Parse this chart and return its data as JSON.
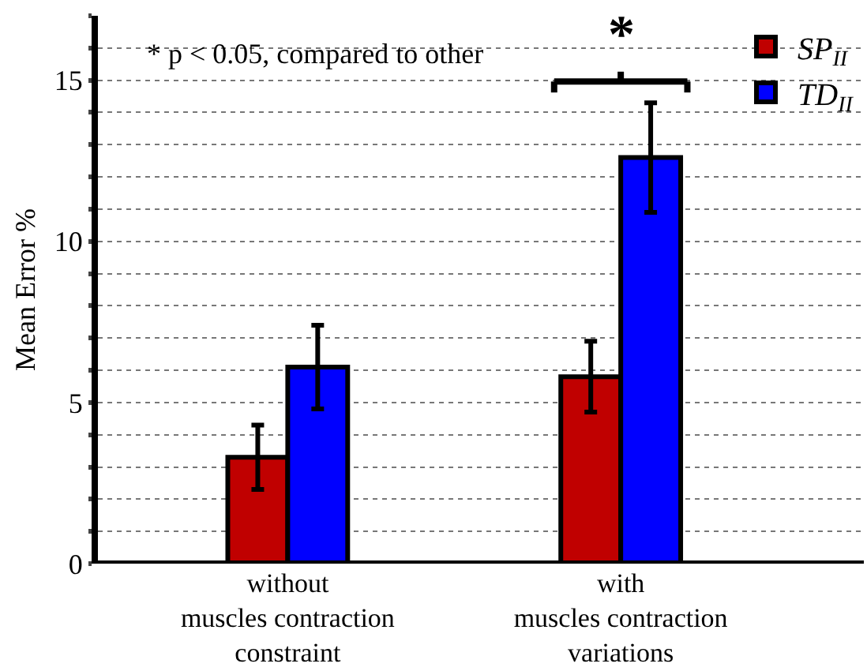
{
  "chart_data": {
    "type": "bar",
    "ylabel": "Mean Error %",
    "categories": [
      "without\nmuscles contraction\nconstraint",
      "with\nmuscles contraction\nvariations"
    ],
    "series": [
      {
        "name": "SP$_{II}$",
        "color": "#c00000",
        "values": [
          3.3,
          5.8
        ],
        "errors": [
          1,
          1.1
        ]
      },
      {
        "name": "TD$_{II}$",
        "color": "#0000ff",
        "values": [
          6.1,
          12.6
        ],
        "errors": [
          1.3,
          1.7
        ]
      }
    ],
    "ylim": [
      0,
      17
    ],
    "yticks": [
      0,
      {
        "value": 1,
        "label": null
      },
      {
        "value": 2,
        "label": null
      },
      {
        "value": 3,
        "label": null
      },
      {
        "value": 4,
        "label": null
      },
      5,
      {
        "value": 6,
        "label": null
      },
      {
        "value": 7,
        "label": null
      },
      {
        "value": 8,
        "label": null
      },
      {
        "value": 9,
        "label": null
      },
      10,
      {
        "value": 11,
        "label": null
      },
      {
        "value": 12,
        "label": null
      },
      {
        "value": 13,
        "label": null
      },
      {
        "value": 14,
        "label": null
      },
      15,
      {
        "value": 16,
        "label": null
      },
      {
        "value": 17,
        "label": null
      }
    ],
    "grid": true,
    "legend": "top right",
    "annotations": [
      "* p < 0.05, compared to other",
      "*"
    ]
  }
}
